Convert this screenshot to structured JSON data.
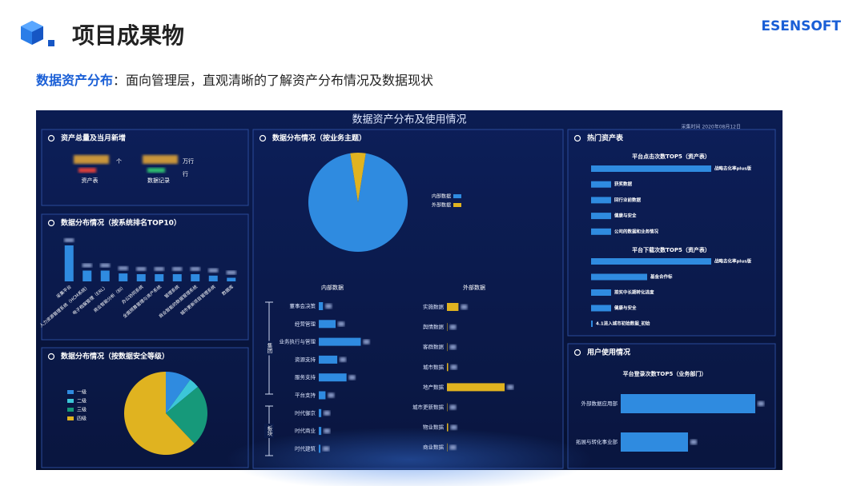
{
  "header": {
    "title": "项目成果物",
    "brand": "ESENSOFT"
  },
  "subtitle": {
    "label": "数据资产分布",
    "text": "：面向管理层，直观清晰的了解资产分布情况及数据现状"
  },
  "dashboard": {
    "title": "数据资产分布及使用情况",
    "timestamp": "采集时间 2020年08月12日",
    "totals": {
      "title": "资产总量及当月新增",
      "items": [
        {
          "label": "资产表",
          "unit": "个"
        },
        {
          "label": "数据记录",
          "unit": "万行",
          "unit2": "行"
        }
      ]
    },
    "system_top10": {
      "title": "数据分布情况（按系统排名TOP10）",
      "color": "#2f8be0",
      "categories": [
        "采集平台",
        "人力资源管理系统（HCM系统）",
        "电子档案管理（ERL）",
        "商业智能分析（BI）",
        "办公协同系统",
        "全面预算管理与资产系统",
        "管理系统",
        "商业智能的数据管理系统",
        "城市更新项目管理系统",
        "数据库"
      ],
      "values": [
        10,
        3,
        3,
        2.2,
        2,
        2,
        2,
        2,
        1.6,
        1
      ]
    },
    "security": {
      "title": "数据分布情况（按数据安全等级）",
      "categories": [
        "一级",
        "二级",
        "三级",
        "四级"
      ],
      "colors": [
        "#2f8be0",
        "#3cc6d8",
        "#16997a",
        "#e0b320"
      ],
      "values": [
        10,
        4,
        24,
        62
      ]
    },
    "business": {
      "title": "数据分布情况（按业务主题）",
      "categories": [
        "内部数据",
        "外部数据"
      ],
      "colors": [
        "#2f8be0",
        "#e0b320"
      ],
      "values": [
        95,
        5
      ]
    },
    "internal": {
      "title": "内部数据",
      "groups": [
        "集团",
        "板块"
      ],
      "color": "#2f8be0",
      "categories": [
        "董事会决策",
        "经营管理",
        "业务执行与管理",
        "资源支持",
        "服务支持",
        "平台支持",
        "时代御京",
        "时代商业",
        "时代建筑"
      ],
      "values": [
        5,
        20,
        50,
        22,
        33,
        8,
        3,
        3,
        2
      ]
    },
    "external": {
      "title": "外部数据",
      "color": "#e0b320",
      "categories": [
        "实施数据",
        "舆情数据",
        "客群数据",
        "城市数据",
        "地产数据",
        "城市更新数据",
        "物业数据",
        "商业数据"
      ],
      "values": [
        14,
        0.5,
        0.5,
        1.5,
        70,
        0.5,
        1.5,
        0.5
      ]
    },
    "hot": {
      "title": "热门资产表",
      "color": "#2f8be0",
      "click": {
        "title": "平台点击次数TOP5（资产表）",
        "categories": [
          "战略去化率plus版",
          "获奖数据",
          "回行业前数据",
          "健康与安全",
          "公司的数据和业务情况"
        ],
        "values": [
          150,
          25,
          25,
          25,
          25
        ]
      },
      "download": {
        "title": "平台下载次数TOP5（资产表）",
        "categories": [
          "战略去化率plus版",
          "基金合作标",
          "按买中长期转化进度",
          "健康与安全",
          "4.1进入城市初始数据_初始"
        ],
        "values": [
          150,
          70,
          25,
          25,
          2
        ]
      }
    },
    "users": {
      "title": "用户使用情况",
      "chart_title": "平台登录次数TOP5（业务部门）",
      "color": "#2f8be0",
      "categories": [
        "外部数据应用部",
        "拓展与转化事业部"
      ],
      "values": [
        168,
        84
      ]
    }
  }
}
